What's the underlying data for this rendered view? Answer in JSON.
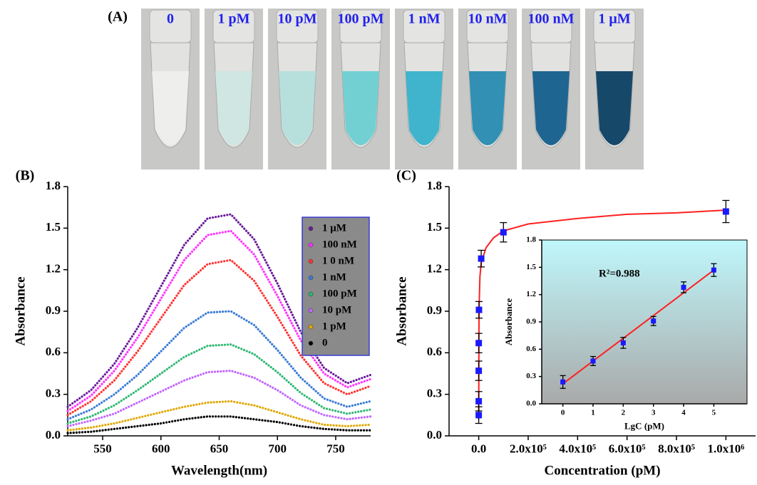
{
  "panel_a": {
    "label": "(A)",
    "tubes": [
      {
        "label": "0",
        "color": "#eeeeec"
      },
      {
        "label": "1 pM",
        "color": "#cfe6e2"
      },
      {
        "label": "10 pM",
        "color": "#b7e0dc"
      },
      {
        "label": "100 pM",
        "color": "#73d0d2"
      },
      {
        "label": "1 nM",
        "color": "#3fb4cc"
      },
      {
        "label": "10 nM",
        "color": "#3190b4"
      },
      {
        "label": "100 nM",
        "color": "#1f6591"
      },
      {
        "label": "1 μM",
        "color": "#16486a"
      }
    ]
  },
  "chart_data": [
    {
      "type": "line",
      "panel_label": "(B)",
      "x_label": "Wavelength(nm)",
      "y_label": "Absorbance",
      "x": [
        520,
        540,
        560,
        580,
        600,
        620,
        640,
        660,
        680,
        700,
        720,
        740,
        760,
        780
      ],
      "xlim": [
        520,
        780
      ],
      "xticks": [
        550,
        600,
        650,
        700,
        750
      ],
      "ylim": [
        0,
        1.8
      ],
      "yticks": [
        {
          "value": 0,
          "label": "0.0"
        },
        0.3,
        0.6,
        0.9,
        1.2,
        1.5,
        1.8
      ],
      "legend": "upper right",
      "series": [
        {
          "name": "1 μM",
          "color": "#6a1b9a",
          "values": [
            0.21,
            0.33,
            0.52,
            0.78,
            1.08,
            1.38,
            1.57,
            1.6,
            1.42,
            1.1,
            0.75,
            0.49,
            0.38,
            0.44
          ]
        },
        {
          "name": "100 nM",
          "color": "#ff33ff",
          "values": [
            0.18,
            0.29,
            0.47,
            0.71,
            0.99,
            1.27,
            1.45,
            1.48,
            1.31,
            1.01,
            0.69,
            0.45,
            0.35,
            0.41
          ]
        },
        {
          "name": "1 0 nM",
          "color": "#ff3333",
          "values": [
            0.15,
            0.25,
            0.4,
            0.61,
            0.85,
            1.09,
            1.24,
            1.27,
            1.12,
            0.86,
            0.58,
            0.38,
            0.3,
            0.36
          ]
        },
        {
          "name": "1 nM",
          "color": "#3a7bd5",
          "values": [
            0.12,
            0.19,
            0.3,
            0.44,
            0.61,
            0.78,
            0.89,
            0.9,
            0.8,
            0.62,
            0.42,
            0.27,
            0.21,
            0.25
          ]
        },
        {
          "name": "100 pM",
          "color": "#2eb872",
          "values": [
            0.09,
            0.14,
            0.22,
            0.33,
            0.45,
            0.57,
            0.65,
            0.66,
            0.59,
            0.46,
            0.31,
            0.2,
            0.16,
            0.19
          ]
        },
        {
          "name": "10 pM",
          "color": "#c266ff",
          "values": [
            0.07,
            0.11,
            0.16,
            0.24,
            0.32,
            0.4,
            0.46,
            0.47,
            0.42,
            0.33,
            0.22,
            0.15,
            0.12,
            0.14
          ]
        },
        {
          "name": "1 pM",
          "color": "#e0a800",
          "values": [
            0.04,
            0.06,
            0.09,
            0.13,
            0.17,
            0.21,
            0.24,
            0.25,
            0.22,
            0.17,
            0.12,
            0.08,
            0.07,
            0.08
          ]
        },
        {
          "name": "0",
          "color": "#000000",
          "values": [
            0.02,
            0.03,
            0.05,
            0.07,
            0.09,
            0.12,
            0.14,
            0.14,
            0.12,
            0.1,
            0.07,
            0.05,
            0.04,
            0.04
          ]
        }
      ]
    },
    {
      "type": "scatter",
      "panel_label": "(C)",
      "x_label": "Concentration (pM)",
      "y_label": "Absorbance",
      "x": [
        0,
        1,
        10,
        100,
        1000,
        10000,
        100000,
        1000000
      ],
      "values": [
        0.15,
        0.25,
        0.47,
        0.67,
        0.91,
        1.28,
        1.47,
        1.62
      ],
      "errors": [
        0.06,
        0.07,
        0.07,
        0.07,
        0.06,
        0.06,
        0.07,
        0.08
      ],
      "color": "#1a1aff",
      "fit": {
        "color": "#ff2020",
        "x": [
          0,
          1000,
          5000,
          10000,
          30000,
          60000,
          100000,
          200000,
          400000,
          600000,
          800000,
          1000000
        ],
        "values": [
          0.12,
          0.9,
          1.15,
          1.25,
          1.36,
          1.43,
          1.48,
          1.53,
          1.57,
          1.6,
          1.61,
          1.63
        ]
      },
      "xlim": [
        -120000,
        1120000
      ],
      "xticks": [
        {
          "value": 0,
          "label": "0.0"
        },
        {
          "value": 200000,
          "label": "2.0x10⁵"
        },
        {
          "value": 400000,
          "label": "4.0x10⁵"
        },
        {
          "value": 600000,
          "label": "6.0x10⁵"
        },
        {
          "value": 800000,
          "label": "8.0x10⁵"
        },
        {
          "value": 1000000,
          "label": "1.0x10⁶"
        }
      ],
      "ylim": [
        0,
        1.8
      ],
      "yticks": [
        {
          "value": 0,
          "label": "0.0"
        },
        0.3,
        0.6,
        0.9,
        1.2,
        1.5,
        1.8
      ]
    },
    {
      "type": "scatter",
      "x_label": "LgC (pM)",
      "y_label": "Absorbance",
      "annotation": "R²=0.988",
      "x": [
        0,
        1,
        2,
        3,
        4,
        5
      ],
      "values": [
        0.24,
        0.47,
        0.67,
        0.91,
        1.28,
        1.47
      ],
      "errors": [
        0.07,
        0.05,
        0.06,
        0.05,
        0.06,
        0.07
      ],
      "color": "#1a1aff",
      "fit": {
        "color": "#ff2020",
        "x": [
          0,
          5
        ],
        "values": [
          0.22,
          1.47
        ]
      },
      "xlim": [
        -0.7,
        6.1
      ],
      "xticks": [
        0,
        1,
        2,
        3,
        4,
        5
      ],
      "ylim": [
        0,
        1.8
      ],
      "yticks": [
        {
          "value": 0,
          "label": "0.0"
        },
        0.3,
        0.6,
        0.9,
        1.2,
        1.5,
        1.8
      ]
    }
  ]
}
